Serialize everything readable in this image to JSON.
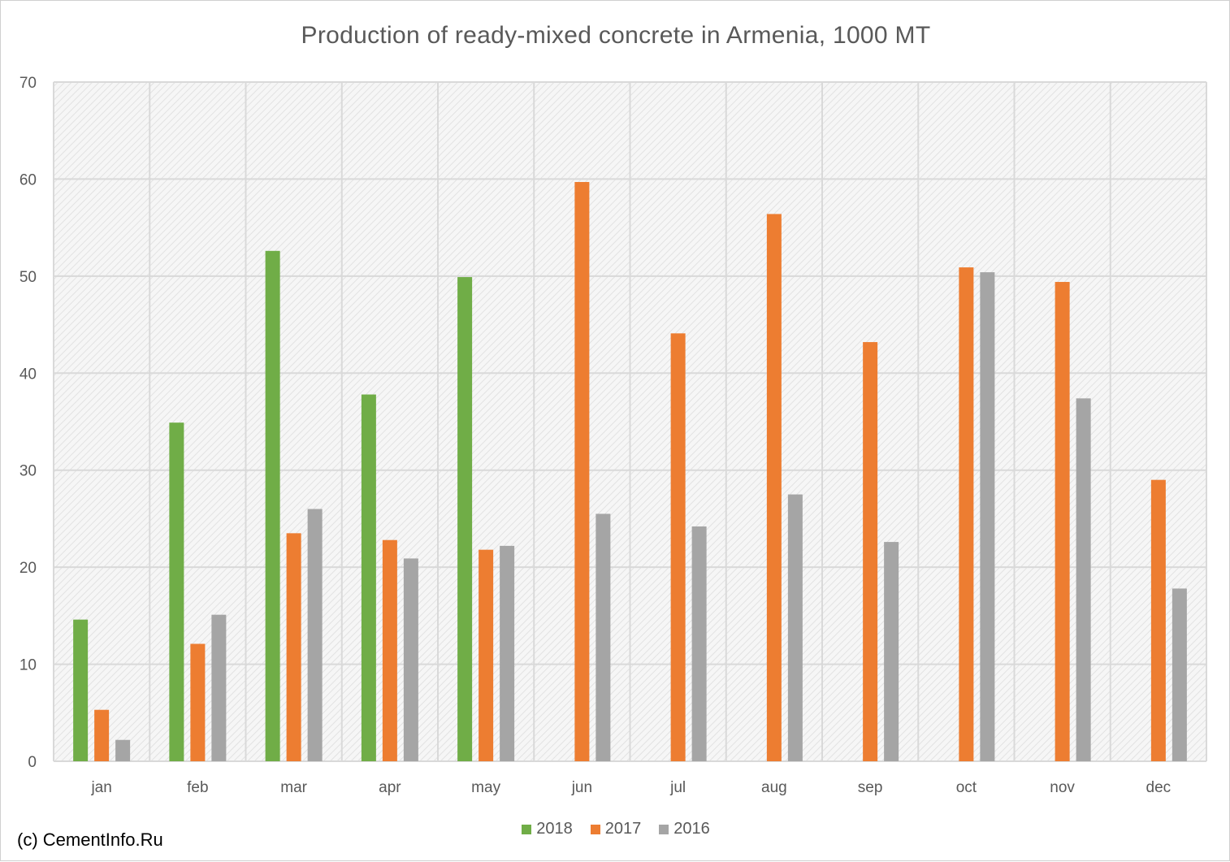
{
  "chart_data": {
    "type": "bar",
    "title": "Production of ready-mixed concrete in Armenia, 1000 MT",
    "categories": [
      "jan",
      "feb",
      "mar",
      "apr",
      "may",
      "jun",
      "jul",
      "aug",
      "sep",
      "oct",
      "nov",
      "dec"
    ],
    "series": [
      {
        "name": "2018",
        "color": "#70ad47",
        "values": [
          14.6,
          34.9,
          52.6,
          37.8,
          49.9,
          null,
          null,
          null,
          null,
          null,
          null,
          null
        ]
      },
      {
        "name": "2017",
        "color": "#ed7d31",
        "values": [
          5.3,
          12.1,
          23.5,
          22.8,
          21.8,
          59.7,
          44.1,
          56.4,
          43.2,
          50.9,
          49.4,
          29.0
        ]
      },
      {
        "name": "2016",
        "color": "#a5a5a5",
        "values": [
          2.2,
          15.1,
          26.0,
          20.9,
          22.2,
          25.5,
          24.2,
          27.5,
          22.6,
          50.4,
          37.4,
          17.8
        ]
      }
    ],
    "ylim": [
      0,
      70
    ],
    "yticks": [
      0,
      10,
      20,
      30,
      40,
      50,
      60,
      70
    ],
    "grid": true,
    "legend": "bottom"
  },
  "credit": "(c) CementInfo.Ru"
}
